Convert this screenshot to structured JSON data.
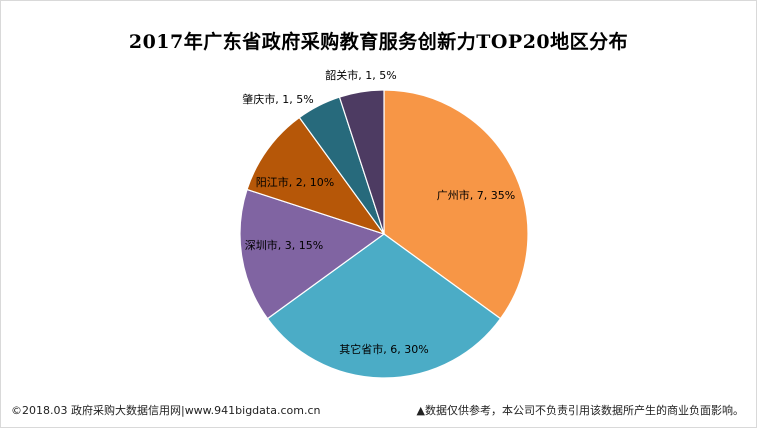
{
  "chart_data": {
    "type": "pie",
    "title": "2017年广东省政府采购教育服务创新力TOP20地区分布",
    "slices": [
      {
        "name": "广州市",
        "value": 7,
        "percent": 35,
        "label": "广州市, 7, 35%",
        "color": "#F79646"
      },
      {
        "name": "其它省市",
        "value": 6,
        "percent": 30,
        "label": "其它省市, 6, 30%",
        "color": "#4BACC6"
      },
      {
        "name": "深圳市",
        "value": 3,
        "percent": 15,
        "label": "深圳市, 3, 15%",
        "color": "#8064A2"
      },
      {
        "name": "阳江市",
        "value": 2,
        "percent": 10,
        "label": "阳江市, 2, 10%",
        "color": "#B65708"
      },
      {
        "name": "肇庆市",
        "value": 1,
        "percent": 5,
        "label": "肇庆市, 1, 5%",
        "color": "#276A7C"
      },
      {
        "name": "韶关市",
        "value": 1,
        "percent": 5,
        "label": "韶关市, 1, 5%",
        "color": "#4D3B62"
      }
    ]
  },
  "footer": {
    "left": "©2018.03 政府采购大数据信用网|www.941bigdata.com.cn",
    "right": "▲数据仅供参考，本公司不负责引用该数据所产生的商业负面影响。"
  }
}
